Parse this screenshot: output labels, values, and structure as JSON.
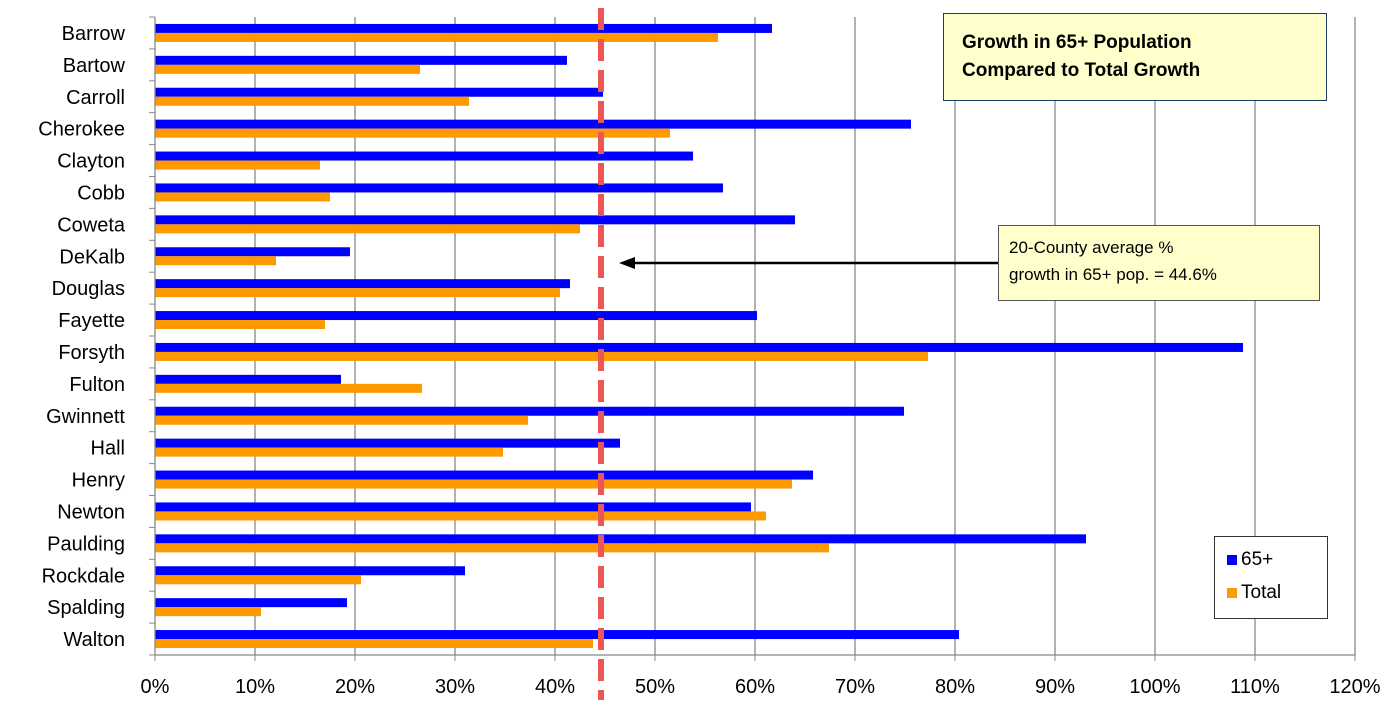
{
  "chart_data": {
    "type": "bar",
    "orientation": "horizontal",
    "title": "Growth in 65+ Population Compared to Total Growth",
    "title_lines": [
      "Growth in 65+ Population",
      "Compared to Total Growth"
    ],
    "categories": [
      "Barrow",
      "Bartow",
      "Carroll",
      "Cherokee",
      "Clayton",
      "Cobb",
      "Coweta",
      "DeKalb",
      "Douglas",
      "Fayette",
      "Forsyth",
      "Fulton",
      "Gwinnett",
      "Hall",
      "Henry",
      "Newton",
      "Paulding",
      "Rockdale",
      "Spalding",
      "Walton"
    ],
    "series": [
      {
        "name": "65+",
        "color": "#0000ff",
        "values": [
          61.7,
          41.2,
          44.8,
          75.6,
          53.8,
          56.8,
          64.0,
          19.5,
          41.5,
          60.2,
          108.8,
          18.6,
          74.9,
          46.5,
          65.8,
          59.6,
          93.1,
          31.0,
          19.2,
          80.4
        ]
      },
      {
        "name": "Total",
        "color": "#ff9900",
        "values": [
          56.3,
          26.5,
          31.4,
          51.5,
          16.5,
          17.5,
          42.5,
          12.1,
          40.5,
          17.0,
          77.3,
          26.7,
          37.3,
          34.8,
          63.7,
          61.1,
          67.4,
          20.6,
          10.6,
          43.8
        ]
      }
    ],
    "xlim": [
      0,
      120
    ],
    "x_ticks": [
      "0%",
      "10%",
      "20%",
      "30%",
      "40%",
      "50%",
      "60%",
      "70%",
      "80%",
      "90%",
      "100%",
      "110%",
      "120%"
    ],
    "grid": "vertical",
    "legend_position": "bottom-right",
    "reference_line": {
      "value": 44.6,
      "color": "#ee5555",
      "style": "dashed"
    },
    "annotation": {
      "lines": [
        "20-County average %",
        "growth in 65+ pop. = 44.6%"
      ]
    }
  }
}
